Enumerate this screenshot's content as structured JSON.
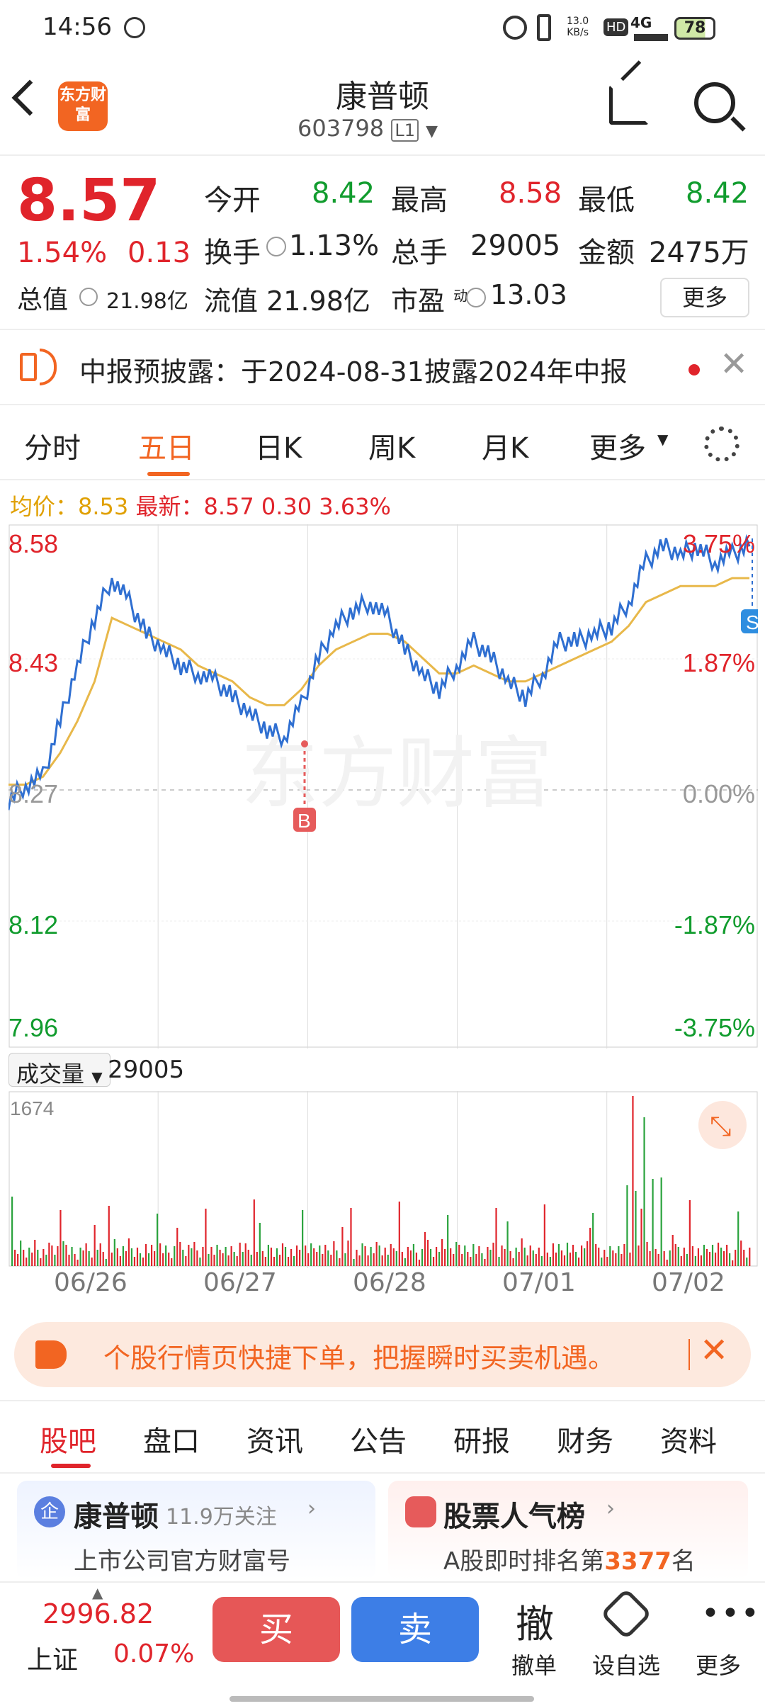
{
  "status": {
    "time": "14:56",
    "net_speed": "13.0",
    "net_unit": "KB/s",
    "network": "4G",
    "battery": "78"
  },
  "header": {
    "logo": "东方财富",
    "title": "康普顿",
    "code": "603798",
    "level": "L1"
  },
  "quote": {
    "price": "8.57",
    "change_pct": "1.54%",
    "change": "0.13",
    "open_label": "今开",
    "open": "8.42",
    "high_label": "最高",
    "high": "8.58",
    "low_label": "最低",
    "low": "8.42",
    "turnover_label": "换手",
    "turnover": "1.13%",
    "volume_label": "总手",
    "volume": "29005",
    "amount_label": "金额",
    "amount": "2475万",
    "mktcap_label": "总值",
    "mktcap": "21.98亿",
    "float_label": "流值",
    "float": "21.98亿",
    "pe_label": "市盈",
    "pe_sup": "动",
    "pe": "13.03",
    "more": "更多"
  },
  "notice": {
    "text": "中报预披露：于2024-08-31披露2024年中报"
  },
  "chart_tabs": [
    "分时",
    "五日",
    "日K",
    "周K",
    "月K",
    "更多"
  ],
  "chart_info": {
    "avg_label": "均价：",
    "avg": "8.53",
    "last_label": "最新：",
    "last": "8.57",
    "chg": "0.30",
    "pct": "3.63%"
  },
  "chart_data": {
    "type": "line",
    "y_ticks_left": [
      "8.58",
      "8.43",
      "8.27",
      "8.12",
      "7.96"
    ],
    "y_ticks_right": [
      "3.75%",
      "1.87%",
      "0.00%",
      "-1.87%",
      "-3.75%"
    ],
    "x_labels": [
      "06/26",
      "06/27",
      "06/28",
      "07/01",
      "07/02"
    ],
    "ylim": [
      7.96,
      8.58
    ],
    "series": [
      {
        "values": [
          8.25,
          8.27,
          8.28,
          8.35,
          8.42,
          8.48,
          8.53,
          8.5,
          8.46,
          8.44,
          8.42,
          8.41,
          8.4,
          8.38,
          8.36,
          8.34,
          8.33,
          8.37,
          8.43,
          8.47,
          8.49,
          8.5,
          8.48,
          8.44,
          8.41,
          8.39,
          8.42,
          8.45,
          8.43,
          8.4,
          8.38,
          8.41,
          8.45,
          8.45,
          8.46,
          8.47,
          8.5,
          8.55,
          8.57,
          8.56,
          8.57,
          8.55,
          8.56,
          8.57
        ]
      },
      {
        "values": [
          8.27,
          8.27,
          8.28,
          8.31,
          8.35,
          8.4,
          8.48,
          8.47,
          8.46,
          8.45,
          8.44,
          8.42,
          8.41,
          8.4,
          8.38,
          8.37,
          8.37,
          8.39,
          8.42,
          8.44,
          8.45,
          8.46,
          8.46,
          8.45,
          8.43,
          8.41,
          8.41,
          8.42,
          8.41,
          8.4,
          8.4,
          8.41,
          8.42,
          8.43,
          8.44,
          8.45,
          8.47,
          8.5,
          8.51,
          8.52,
          8.52,
          8.52,
          8.53,
          8.53
        ]
      }
    ],
    "markers": {
      "buy": "B",
      "sell": "S"
    },
    "volume_label": "成交量",
    "volume_total": "29005",
    "volume_max": "1674"
  },
  "watermark": "东方财富",
  "promo": {
    "text": "个股行情页快捷下单，把握瞬时买卖机遇。"
  },
  "sub_tabs": [
    "股吧",
    "盘口",
    "资讯",
    "公告",
    "研报",
    "财务",
    "资料"
  ],
  "cards": [
    {
      "icon": "企",
      "title": "康普顿",
      "meta": "11.9万关注",
      "desc": "上市公司官方财富号"
    },
    {
      "title": "股票人气榜",
      "desc_pre": "A股即时排名第",
      "rank": "3377",
      "desc_post": "名"
    }
  ],
  "bottom": {
    "index_value": "2996.82",
    "index_name": "上证",
    "index_pct": "0.07%",
    "buy": "买",
    "sell": "卖",
    "cancel": "撤单",
    "cancel_icon": "撤",
    "watch": "设自选",
    "more": "更多"
  }
}
